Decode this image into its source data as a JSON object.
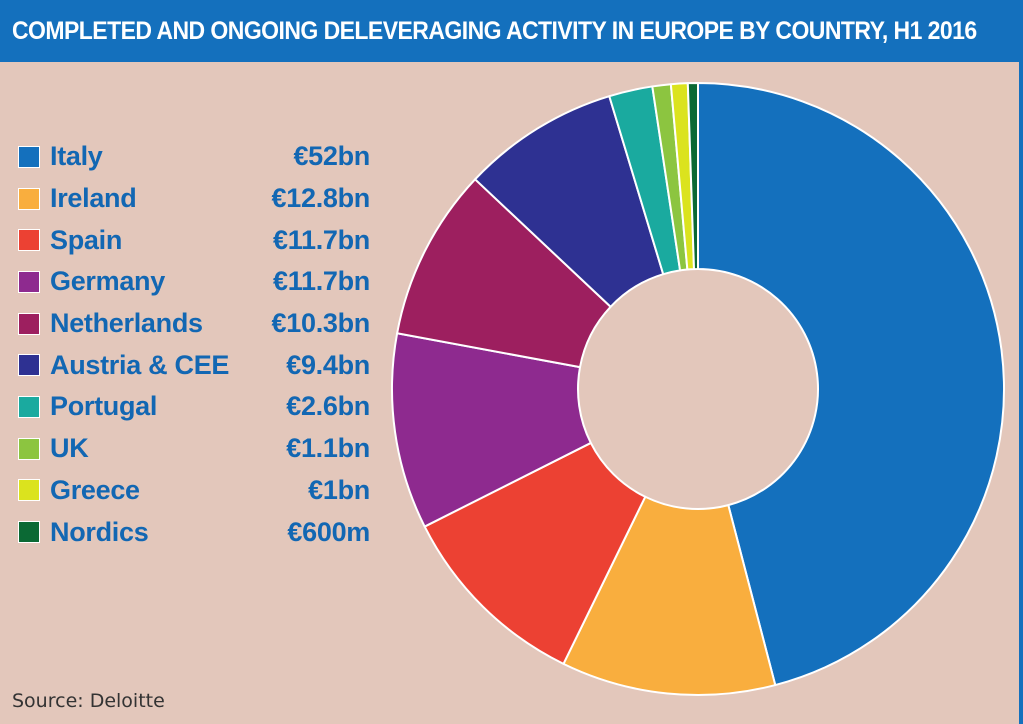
{
  "header": {
    "title": "COMPLETED AND ONGOING DELEVERAGING ACTIVITY IN EUROPE BY COUNTRY, H1 2016"
  },
  "footer": {
    "source": "Source: Deloitte"
  },
  "chart_data": {
    "type": "pie",
    "title": "COMPLETED AND ONGOING DELEVERAGING ACTIVITY IN EUROPE BY COUNTRY, H1 2016",
    "donut": true,
    "legend_position": "left",
    "unit": "€bn",
    "slices": [
      {
        "label": "Italy",
        "value_label": "€52bn",
        "value": 52,
        "color": "#1470bd"
      },
      {
        "label": "Ireland",
        "value_label": "€12.8bn",
        "value": 12.8,
        "color": "#f9ae3e"
      },
      {
        "label": "Spain",
        "value_label": "€11.7bn",
        "value": 11.7,
        "color": "#ec4133"
      },
      {
        "label": "Germany",
        "value_label": "€11.7bn",
        "value": 11.7,
        "color": "#8e2a8f"
      },
      {
        "label": "Netherlands",
        "value_label": "€10.3bn",
        "value": 10.3,
        "color": "#9d1f5f"
      },
      {
        "label": "Austria & CEE",
        "value_label": "€9.4bn",
        "value": 9.4,
        "color": "#2e3192"
      },
      {
        "label": "Portugal",
        "value_label": "€2.6bn",
        "value": 2.6,
        "color": "#1aaa9f"
      },
      {
        "label": "UK",
        "value_label": "€1.1bn",
        "value": 1.1,
        "color": "#8cc540"
      },
      {
        "label": "Greece",
        "value_label": "€1bn",
        "value": 1.0,
        "color": "#dbe31e"
      },
      {
        "label": "Nordics",
        "value_label": "€600m",
        "value": 0.6,
        "color": "#0b6934"
      }
    ]
  }
}
